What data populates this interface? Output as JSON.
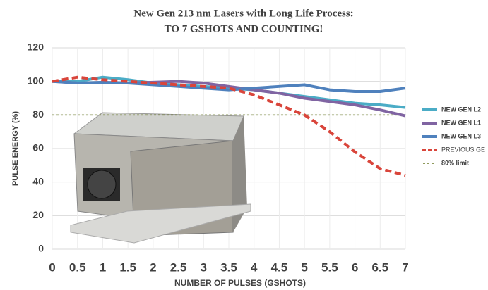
{
  "chart_data": {
    "type": "line",
    "title": "New Gen 213 nm Lasers with Long Life Process:",
    "subtitle": "TO 7 GSHOTS AND COUNTING!",
    "x_label": "NUMBER OF PULSES (GSHOTS)",
    "y_label": "PULSE ENERGY (%)",
    "x": [
      0,
      0.5,
      1,
      1.5,
      2,
      2.5,
      3,
      3.5,
      4,
      4.5,
      5,
      5.5,
      6,
      6.5,
      7
    ],
    "series": [
      {
        "name": "NEW GEN L2",
        "color": "#4bacc6",
        "dash": false,
        "values": [
          100,
          100,
          102.5,
          101,
          99,
          98,
          97,
          96,
          95,
          93,
          91,
          89,
          87,
          86,
          84.5
        ]
      },
      {
        "name": "NEW GEN L1",
        "color": "#8064a2",
        "dash": false,
        "values": [
          100,
          99,
          99,
          99,
          99.5,
          100,
          99,
          97,
          95,
          93,
          90,
          88,
          86,
          83,
          79.5
        ]
      },
      {
        "name": "NEW GEN L3",
        "color": "#4f81bd",
        "dash": false,
        "values": [
          100,
          99,
          99.5,
          99,
          98,
          97,
          96,
          95,
          96,
          97,
          98,
          95,
          94,
          94,
          96
        ]
      },
      {
        "name": "PREVIOUS GE",
        "color": "#d9453b",
        "dash": true,
        "values": [
          100,
          102.5,
          101,
          100,
          99,
          98,
          97,
          96,
          92,
          86,
          80,
          70,
          58,
          48,
          44
        ]
      }
    ],
    "limit": {
      "name": "80% limit",
      "value": 80,
      "color": "#6b7a2a"
    },
    "xlim": [
      0,
      7
    ],
    "xticks": [
      0,
      0.5,
      1,
      1.5,
      2,
      2.5,
      3,
      3.5,
      4,
      4.5,
      5,
      5.5,
      6,
      6.5,
      7
    ],
    "ylim": [
      0,
      120
    ],
    "yticks": [
      0,
      20,
      40,
      60,
      80,
      100,
      120
    ],
    "grid": true,
    "legend": "right"
  }
}
